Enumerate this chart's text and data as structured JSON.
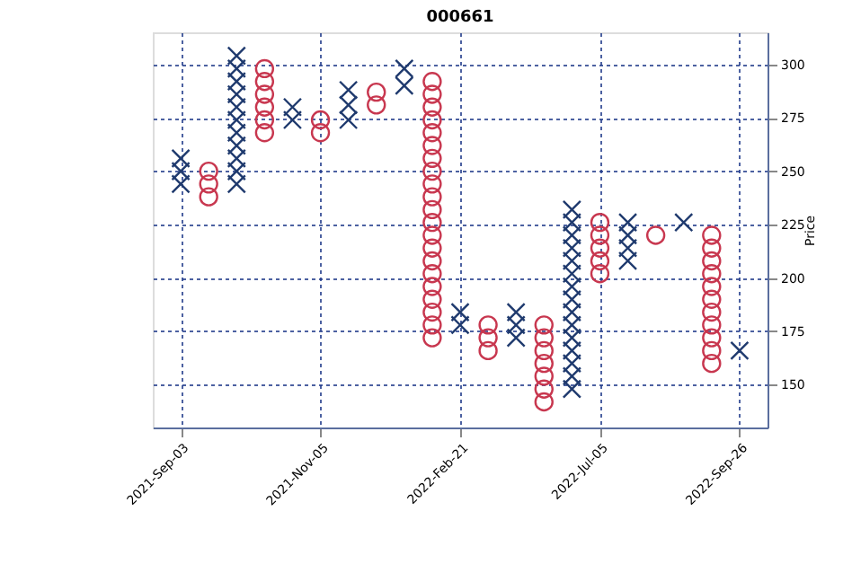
{
  "chart_data": {
    "type": "scatter",
    "title": "000661",
    "ylabel": "Price",
    "categories": [
      "2021-Sep-03",
      null,
      null,
      null,
      null,
      "2021-Nov-05",
      null,
      null,
      null,
      null,
      "2022-Feb-21",
      null,
      null,
      null,
      null,
      "2022-Jul-05",
      null,
      null,
      null,
      null,
      "2022-Sep-26"
    ],
    "ylim": [
      130,
      315
    ],
    "yticks": [
      150,
      175,
      200,
      225,
      250,
      275,
      300
    ],
    "grid": true,
    "series": [
      {
        "color": "#1f3a6e",
        "marker": "cross",
        "values": [
          244,
          null,
          244,
          null,
          274,
          null,
          274,
          null,
          290,
          null,
          178,
          null,
          172,
          null,
          148,
          null,
          208,
          null,
          226,
          null,
          166
        ]
      },
      {
        "color": "#1f3a6e",
        "marker": "cross",
        "values": [
          250,
          null,
          250,
          null,
          280,
          null,
          281,
          null,
          298,
          null,
          184,
          null,
          178,
          null,
          154,
          null,
          214,
          null,
          null,
          null,
          null
        ]
      },
      {
        "color": "#1f3a6e",
        "marker": "cross",
        "values": [
          256,
          null,
          256,
          null,
          null,
          null,
          288,
          null,
          null,
          null,
          null,
          null,
          184,
          null,
          160,
          null,
          220,
          null,
          null,
          null,
          null
        ]
      },
      {
        "color": "#1f3a6e",
        "marker": "cross",
        "values": [
          null,
          null,
          262,
          null,
          null,
          null,
          null,
          null,
          null,
          null,
          null,
          null,
          null,
          null,
          166,
          null,
          226,
          null,
          null,
          null,
          null
        ]
      },
      {
        "color": "#1f3a6e",
        "marker": "cross",
        "values": [
          null,
          null,
          268,
          null,
          null,
          null,
          null,
          null,
          null,
          null,
          null,
          null,
          null,
          null,
          172,
          null,
          null,
          null,
          null,
          null,
          null
        ]
      },
      {
        "color": "#1f3a6e",
        "marker": "cross",
        "values": [
          null,
          null,
          274,
          null,
          null,
          null,
          null,
          null,
          null,
          null,
          null,
          null,
          null,
          null,
          178,
          null,
          null,
          null,
          null,
          null,
          null
        ]
      },
      {
        "color": "#1f3a6e",
        "marker": "cross",
        "values": [
          null,
          null,
          280,
          null,
          null,
          null,
          null,
          null,
          null,
          null,
          null,
          null,
          null,
          null,
          184,
          null,
          null,
          null,
          null,
          null,
          null
        ]
      },
      {
        "color": "#1f3a6e",
        "marker": "cross",
        "values": [
          null,
          null,
          286,
          null,
          null,
          null,
          null,
          null,
          null,
          null,
          null,
          null,
          null,
          null,
          190,
          null,
          null,
          null,
          null,
          null,
          null
        ]
      },
      {
        "color": "#1f3a6e",
        "marker": "cross",
        "values": [
          null,
          null,
          292,
          null,
          null,
          null,
          null,
          null,
          null,
          null,
          null,
          null,
          null,
          null,
          196,
          null,
          null,
          null,
          null,
          null,
          null
        ]
      },
      {
        "color": "#1f3a6e",
        "marker": "cross",
        "values": [
          null,
          null,
          298,
          null,
          null,
          null,
          null,
          null,
          null,
          null,
          null,
          null,
          null,
          null,
          202,
          null,
          null,
          null,
          null,
          null,
          null
        ]
      },
      {
        "color": "#1f3a6e",
        "marker": "cross",
        "values": [
          null,
          null,
          304,
          null,
          null,
          null,
          null,
          null,
          null,
          null,
          null,
          null,
          null,
          null,
          208,
          null,
          null,
          null,
          null,
          null,
          null
        ]
      },
      {
        "color": "#1f3a6e",
        "marker": "cross",
        "values": [
          null,
          null,
          null,
          null,
          null,
          null,
          null,
          null,
          null,
          null,
          null,
          null,
          null,
          null,
          214,
          null,
          null,
          null,
          null,
          null,
          null
        ]
      },
      {
        "color": "#1f3a6e",
        "marker": "cross",
        "values": [
          null,
          null,
          null,
          null,
          null,
          null,
          null,
          null,
          null,
          null,
          null,
          null,
          null,
          null,
          220,
          null,
          null,
          null,
          null,
          null,
          null
        ]
      },
      {
        "color": "#1f3a6e",
        "marker": "cross",
        "values": [
          null,
          null,
          null,
          null,
          null,
          null,
          null,
          null,
          null,
          null,
          null,
          null,
          null,
          null,
          226,
          null,
          null,
          null,
          null,
          null,
          null
        ]
      },
      {
        "color": "#1f3a6e",
        "marker": "cross",
        "values": [
          null,
          null,
          null,
          null,
          null,
          null,
          null,
          null,
          null,
          null,
          null,
          null,
          null,
          null,
          232,
          null,
          null,
          null,
          null,
          null,
          null
        ]
      },
      {
        "color": "#c8374f",
        "marker": "circle",
        "values": [
          null,
          238,
          null,
          268,
          null,
          268,
          null,
          281,
          null,
          172,
          null,
          166,
          null,
          142,
          null,
          202,
          null,
          220,
          null,
          160,
          null
        ]
      },
      {
        "color": "#c8374f",
        "marker": "circle",
        "values": [
          null,
          244,
          null,
          274,
          null,
          274,
          null,
          287,
          null,
          178,
          null,
          172,
          null,
          148,
          null,
          208,
          null,
          null,
          null,
          166,
          null
        ]
      },
      {
        "color": "#c8374f",
        "marker": "circle",
        "values": [
          null,
          250,
          null,
          280,
          null,
          null,
          null,
          null,
          null,
          184,
          null,
          178,
          null,
          154,
          null,
          214,
          null,
          null,
          null,
          172,
          null
        ]
      },
      {
        "color": "#c8374f",
        "marker": "circle",
        "values": [
          null,
          null,
          null,
          286,
          null,
          null,
          null,
          null,
          null,
          190,
          null,
          null,
          null,
          160,
          null,
          220,
          null,
          null,
          null,
          178,
          null
        ]
      },
      {
        "color": "#c8374f",
        "marker": "circle",
        "values": [
          null,
          null,
          null,
          292,
          null,
          null,
          null,
          null,
          null,
          196,
          null,
          null,
          null,
          166,
          null,
          226,
          null,
          null,
          null,
          184,
          null
        ]
      },
      {
        "color": "#c8374f",
        "marker": "circle",
        "values": [
          null,
          null,
          null,
          298,
          null,
          null,
          null,
          null,
          null,
          202,
          null,
          null,
          null,
          172,
          null,
          null,
          null,
          null,
          null,
          190,
          null
        ]
      },
      {
        "color": "#c8374f",
        "marker": "circle",
        "values": [
          null,
          null,
          null,
          null,
          null,
          null,
          null,
          null,
          null,
          208,
          null,
          null,
          null,
          178,
          null,
          null,
          null,
          null,
          null,
          196,
          null
        ]
      },
      {
        "color": "#c8374f",
        "marker": "circle",
        "values": [
          null,
          null,
          null,
          null,
          null,
          null,
          null,
          null,
          null,
          214,
          null,
          null,
          null,
          null,
          null,
          null,
          null,
          null,
          null,
          202,
          null
        ]
      },
      {
        "color": "#c8374f",
        "marker": "circle",
        "values": [
          null,
          null,
          null,
          null,
          null,
          null,
          null,
          null,
          null,
          220,
          null,
          null,
          null,
          null,
          null,
          null,
          null,
          null,
          null,
          208,
          null
        ]
      },
      {
        "color": "#c8374f",
        "marker": "circle",
        "values": [
          null,
          null,
          null,
          null,
          null,
          null,
          null,
          null,
          null,
          226,
          null,
          null,
          null,
          null,
          null,
          null,
          null,
          null,
          null,
          214,
          null
        ]
      },
      {
        "color": "#c8374f",
        "marker": "circle",
        "values": [
          null,
          null,
          null,
          null,
          null,
          null,
          null,
          null,
          null,
          232,
          null,
          null,
          null,
          null,
          null,
          null,
          null,
          null,
          null,
          220,
          null
        ]
      },
      {
        "color": "#c8374f",
        "marker": "circle",
        "values": [
          null,
          null,
          null,
          null,
          null,
          null,
          null,
          null,
          null,
          238,
          null,
          null,
          null,
          null,
          null,
          null,
          null,
          null,
          null,
          null,
          null
        ]
      },
      {
        "color": "#c8374f",
        "marker": "circle",
        "values": [
          null,
          null,
          null,
          null,
          null,
          null,
          null,
          null,
          null,
          244,
          null,
          null,
          null,
          null,
          null,
          null,
          null,
          null,
          null,
          null,
          null
        ]
      },
      {
        "color": "#c8374f",
        "marker": "circle",
        "values": [
          null,
          null,
          null,
          null,
          null,
          null,
          null,
          null,
          null,
          250,
          null,
          null,
          null,
          null,
          null,
          null,
          null,
          null,
          null,
          null,
          null
        ]
      },
      {
        "color": "#c8374f",
        "marker": "circle",
        "values": [
          null,
          null,
          null,
          null,
          null,
          null,
          null,
          null,
          null,
          256,
          null,
          null,
          null,
          null,
          null,
          null,
          null,
          null,
          null,
          null,
          null
        ]
      },
      {
        "color": "#c8374f",
        "marker": "circle",
        "values": [
          null,
          null,
          null,
          null,
          null,
          null,
          null,
          null,
          null,
          262,
          null,
          null,
          null,
          null,
          null,
          null,
          null,
          null,
          null,
          null,
          null
        ]
      },
      {
        "color": "#c8374f",
        "marker": "circle",
        "values": [
          null,
          null,
          null,
          null,
          null,
          null,
          null,
          null,
          null,
          268,
          null,
          null,
          null,
          null,
          null,
          null,
          null,
          null,
          null,
          null,
          null
        ]
      },
      {
        "color": "#c8374f",
        "marker": "circle",
        "values": [
          null,
          null,
          null,
          null,
          null,
          null,
          null,
          null,
          null,
          274,
          null,
          null,
          null,
          null,
          null,
          null,
          null,
          null,
          null,
          null,
          null
        ]
      },
      {
        "color": "#c8374f",
        "marker": "circle",
        "values": [
          null,
          null,
          null,
          null,
          null,
          null,
          null,
          null,
          null,
          280,
          null,
          null,
          null,
          null,
          null,
          null,
          null,
          null,
          null,
          null,
          null
        ]
      },
      {
        "color": "#c8374f",
        "marker": "circle",
        "values": [
          null,
          null,
          null,
          null,
          null,
          null,
          null,
          null,
          null,
          286,
          null,
          null,
          null,
          null,
          null,
          null,
          null,
          null,
          null,
          null,
          null
        ]
      },
      {
        "color": "#c8374f",
        "marker": "circle",
        "values": [
          null,
          null,
          null,
          null,
          null,
          null,
          null,
          null,
          null,
          292,
          null,
          null,
          null,
          null,
          null,
          null,
          null,
          null,
          null,
          null,
          null
        ]
      }
    ]
  }
}
